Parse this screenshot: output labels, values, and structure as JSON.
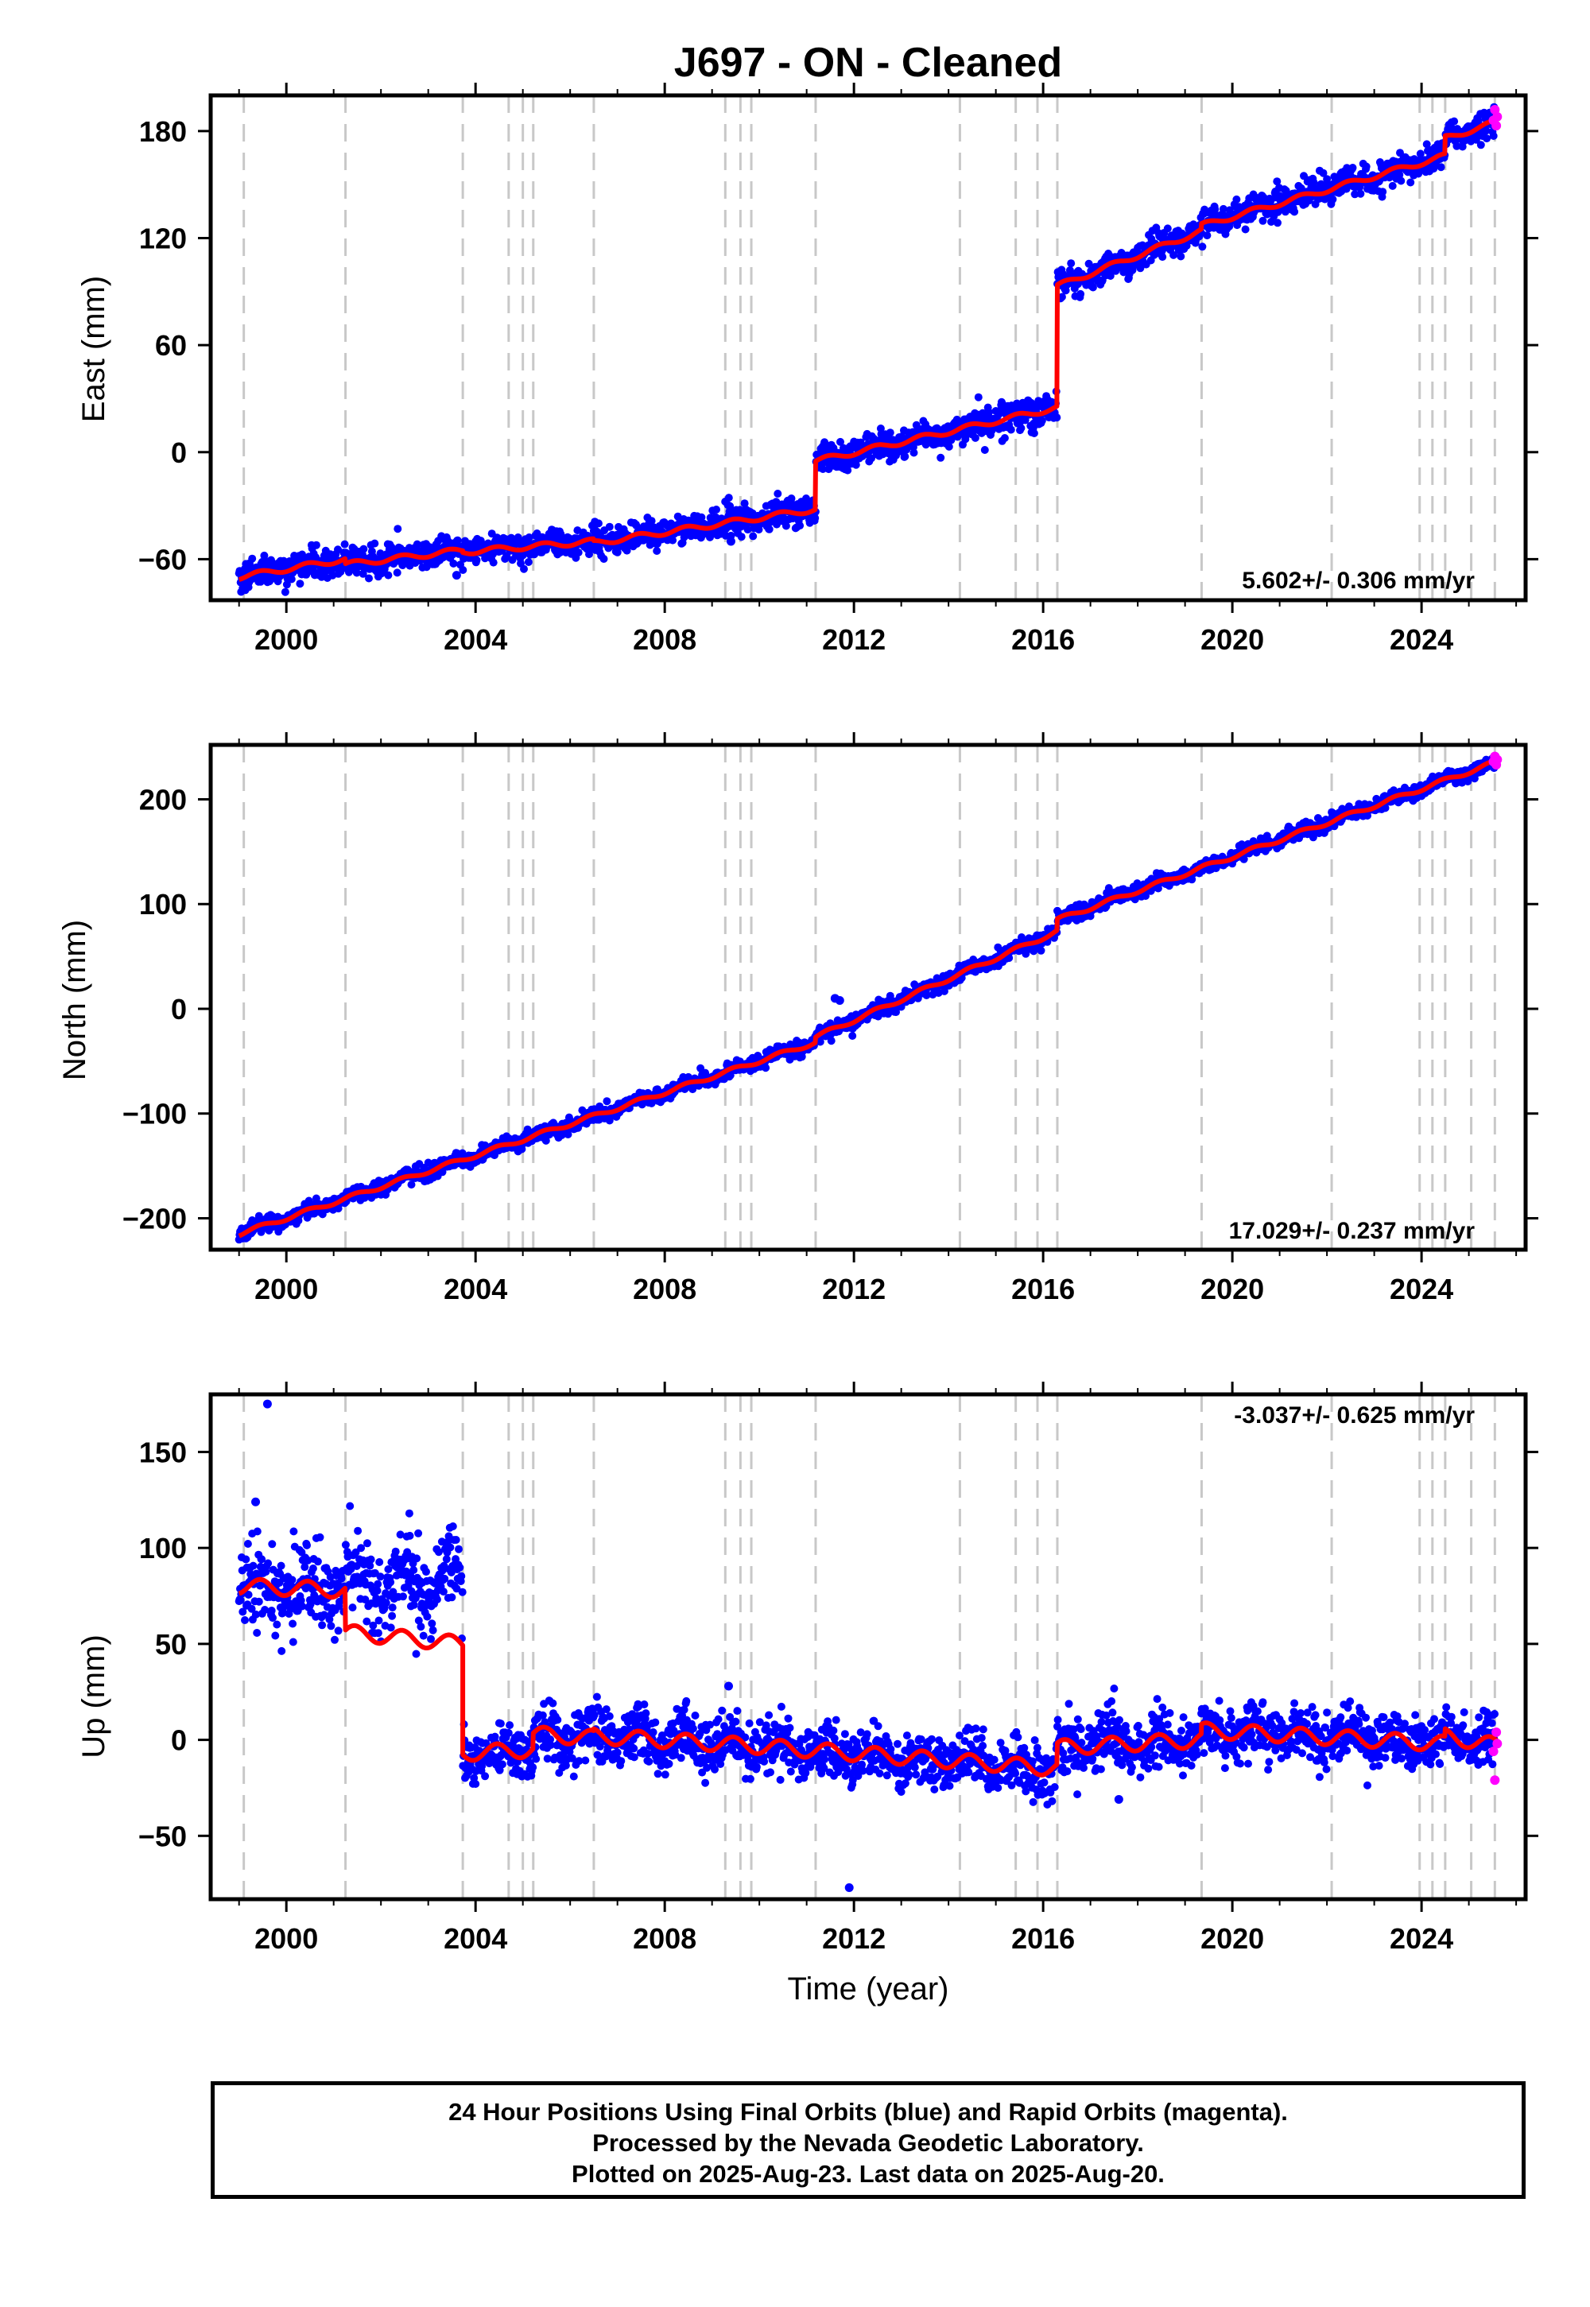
{
  "title": "J697  - ON - Cleaned",
  "colors": {
    "final_orbits": "#0000ff",
    "rapid_orbits": "#ff00ff",
    "model": "#ff0000",
    "event_lines": "#c8c8c8",
    "frame": "#000000"
  },
  "chart_data": [
    {
      "type": "scatter",
      "component": "east",
      "ylabel": "East (mm)",
      "xlabel": "",
      "xlim": [
        1998.4,
        2026.2
      ],
      "ylim": [
        -83,
        200
      ],
      "xticks": [
        2000,
        2004,
        2008,
        2012,
        2016,
        2020,
        2024
      ],
      "yticks": [
        -60,
        0,
        60,
        120,
        180
      ],
      "grid": false,
      "rate_label": "5.602+/- 0.306 mm/yr",
      "rate_label_position": "bottom-right",
      "event_lines": [
        1999.1,
        2001.25,
        2003.73,
        2004.7,
        2005.0,
        2005.22,
        2006.5,
        2009.28,
        2009.6,
        2009.83,
        2011.19,
        2014.24,
        2015.42,
        2015.88,
        2016.3,
        2019.35,
        2022.1,
        2023.96,
        2024.23,
        2024.5,
        2025.05,
        2025.55
      ],
      "model_segments": [
        {
          "from": 1999.0,
          "to": 2001.25,
          "start": -70,
          "end": -60
        },
        {
          "from": 2001.25,
          "to": 2003.73,
          "start": -63,
          "end": -55
        },
        {
          "from": 2003.73,
          "to": 2006.5,
          "start": -56,
          "end": -50
        },
        {
          "from": 2006.5,
          "to": 2011.19,
          "start": -51,
          "end": -32
        },
        {
          "from": 2011.19,
          "to": 2016.3,
          "start": -5,
          "end": 25
        },
        {
          "from": 2016.3,
          "to": 2019.35,
          "start": 93,
          "end": 124
        },
        {
          "from": 2019.35,
          "to": 2024.5,
          "start": 127,
          "end": 166
        },
        {
          "from": 2024.5,
          "to": 2025.6,
          "start": 176,
          "end": 185
        }
      ],
      "seasonal_amplitude": 1.5,
      "scatter": 4,
      "outliers": [
        {
          "x": 2009.4,
          "y": -50
        },
        {
          "x": 2003.6,
          "y": -69
        }
      ],
      "rapid_points": [
        {
          "x": 2025.52,
          "y": 186
        },
        {
          "x": 2025.55,
          "y": 192
        },
        {
          "x": 2025.58,
          "y": 183
        },
        {
          "x": 2025.6,
          "y": 188
        }
      ]
    },
    {
      "type": "scatter",
      "component": "north",
      "ylabel": "North (mm)",
      "xlabel": "",
      "xlim": [
        1998.4,
        2026.2
      ],
      "ylim": [
        -230,
        252
      ],
      "xticks": [
        2000,
        2004,
        2008,
        2012,
        2016,
        2020,
        2024
      ],
      "yticks": [
        -200,
        -100,
        0,
        100,
        200
      ],
      "grid": false,
      "rate_label": "17.029+/- 0.237 mm/yr",
      "rate_label_position": "bottom-right",
      "event_lines": [
        1999.1,
        2001.25,
        2003.73,
        2004.7,
        2005.0,
        2005.22,
        2006.5,
        2009.28,
        2009.6,
        2009.83,
        2011.19,
        2014.24,
        2015.42,
        2015.88,
        2016.3,
        2019.35,
        2022.1,
        2023.96,
        2024.23,
        2024.5,
        2025.05,
        2025.55
      ],
      "model_segments": [
        {
          "from": 1999.0,
          "to": 2011.19,
          "start": -215,
          "end": -32
        },
        {
          "from": 2011.19,
          "to": 2016.3,
          "start": -27,
          "end": 74
        },
        {
          "from": 2016.3,
          "to": 2025.6,
          "start": 85,
          "end": 236
        }
      ],
      "seasonal_amplitude": 2,
      "scatter": 3.5,
      "outliers": [
        {
          "x": 2011.6,
          "y": 10
        },
        {
          "x": 2011.7,
          "y": 8
        }
      ],
      "rapid_points": [
        {
          "x": 2025.52,
          "y": 236
        },
        {
          "x": 2025.55,
          "y": 241
        },
        {
          "x": 2025.58,
          "y": 233
        },
        {
          "x": 2025.6,
          "y": 238
        }
      ]
    },
    {
      "type": "scatter",
      "component": "up",
      "ylabel": "Up (mm)",
      "xlabel": "Time (year)",
      "xlim": [
        1998.4,
        2026.2
      ],
      "ylim": [
        -83,
        180
      ],
      "xticks": [
        2000,
        2004,
        2008,
        2012,
        2016,
        2020,
        2024
      ],
      "yticks": [
        -50,
        0,
        50,
        100,
        150
      ],
      "grid": false,
      "rate_label": "-3.037+/- 0.625 mm/yr",
      "rate_label_position": "top-right",
      "event_lines": [
        1999.1,
        2001.25,
        2003.73,
        2004.7,
        2005.0,
        2005.22,
        2006.5,
        2009.28,
        2009.6,
        2009.83,
        2011.19,
        2014.24,
        2015.42,
        2015.88,
        2016.3,
        2019.35,
        2022.1,
        2023.96,
        2024.23,
        2024.5,
        2025.05,
        2025.55
      ],
      "model_segments": [
        {
          "from": 1999.0,
          "to": 2001.25,
          "start": 80,
          "end": 78
        },
        {
          "from": 2001.25,
          "to": 2003.73,
          "start": 56,
          "end": 50
        },
        {
          "from": 2003.73,
          "to": 2005.22,
          "start": -7,
          "end": -5
        },
        {
          "from": 2005.22,
          "to": 2006.5,
          "start": 3,
          "end": 1
        },
        {
          "from": 2006.5,
          "to": 2009.83,
          "start": 2,
          "end": -3
        },
        {
          "from": 2009.83,
          "to": 2016.3,
          "start": -3,
          "end": -15
        },
        {
          "from": 2016.3,
          "to": 2019.35,
          "start": -4,
          "end": 0
        },
        {
          "from": 2019.35,
          "to": 2024.5,
          "start": 5,
          "end": -2
        },
        {
          "from": 2024.5,
          "to": 2025.6,
          "start": 2,
          "end": -3
        }
      ],
      "seasonal_amplitude": 4,
      "scatter": 7,
      "outliers": [
        {
          "x": 1999.6,
          "y": 175
        },
        {
          "x": 1999.35,
          "y": 124
        },
        {
          "x": 2011.9,
          "y": -77
        },
        {
          "x": 2009.35,
          "y": 28
        },
        {
          "x": 2017.6,
          "y": -31
        }
      ],
      "rapid_points": [
        {
          "x": 2025.52,
          "y": -6
        },
        {
          "x": 2025.55,
          "y": -21
        },
        {
          "x": 2025.58,
          "y": 4
        },
        {
          "x": 2025.6,
          "y": -2
        }
      ]
    }
  ],
  "footer": {
    "line1": "24 Hour Positions Using Final Orbits (blue) and Rapid Orbits (magenta).",
    "line2": "Processed by the Nevada Geodetic Laboratory.",
    "line3": "Plotted on 2025-Aug-23. Last data on 2025-Aug-20."
  }
}
